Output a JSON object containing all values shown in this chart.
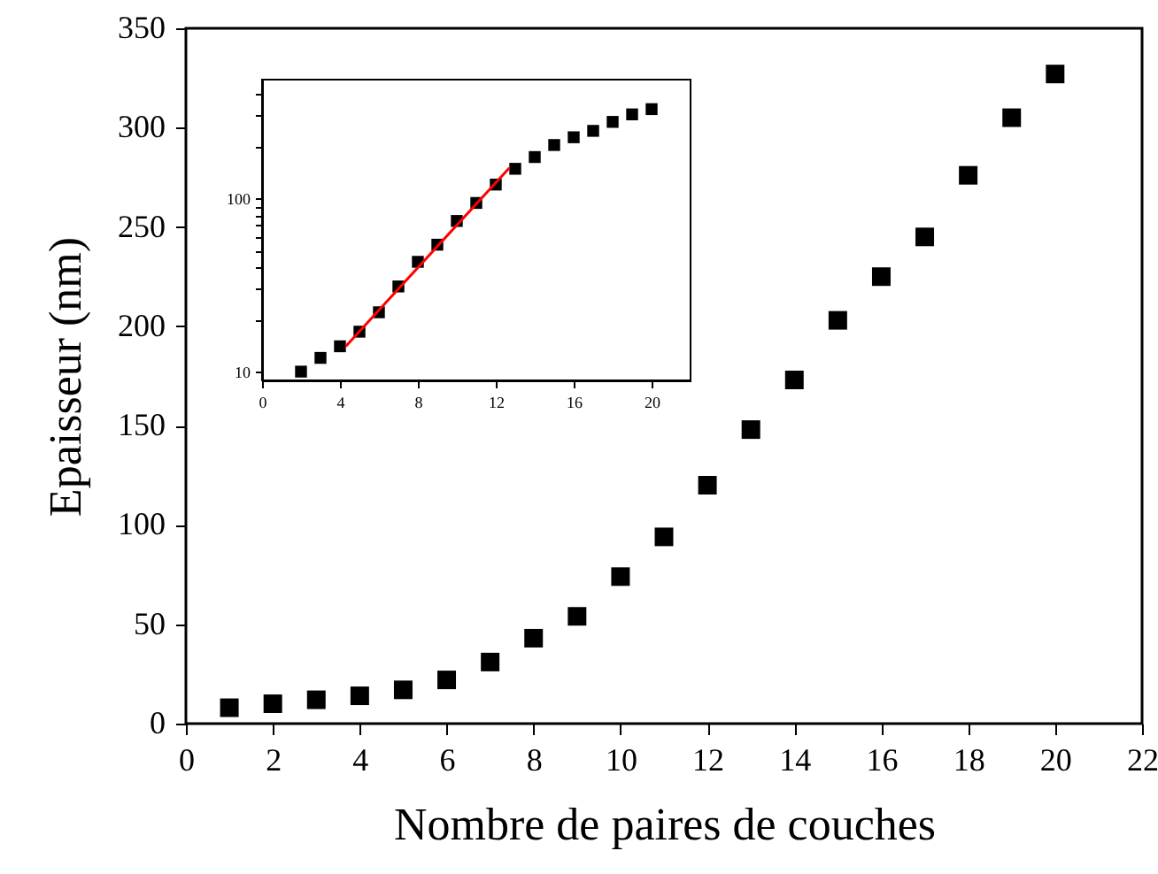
{
  "chart_data": [
    {
      "type": "scatter",
      "xlabel": "Nombre de paires de couches",
      "ylabel": "Epaisseur (nm)",
      "x": [
        1,
        2,
        3,
        4,
        5,
        6,
        7,
        8,
        9,
        10,
        11,
        12,
        13,
        14,
        15,
        16,
        17,
        18,
        19,
        20
      ],
      "series": [
        {
          "color": "#000000",
          "values": [
            8,
            10,
            12,
            14,
            17,
            22,
            31,
            43,
            54,
            74,
            94,
            120,
            148,
            173,
            203,
            225,
            245,
            276,
            305,
            327
          ]
        }
      ],
      "xlim": [
        0,
        22
      ],
      "ylim": [
        0,
        350
      ],
      "xticks": [
        0,
        2,
        4,
        6,
        8,
        10,
        12,
        14,
        16,
        18,
        20,
        22
      ],
      "yticks": [
        0,
        50,
        100,
        150,
        200,
        250,
        300,
        350
      ],
      "marker": "square",
      "grid": false
    },
    {
      "type": "scatter",
      "x": [
        2,
        3,
        4,
        5,
        6,
        7,
        8,
        9,
        10,
        11,
        12,
        13,
        14,
        15,
        16,
        17,
        18,
        19,
        20
      ],
      "series": [
        {
          "color": "#000000",
          "marker": "square",
          "values": [
            10,
            12,
            14,
            17,
            22,
            31,
            43,
            54,
            74,
            94,
            120,
            148,
            173,
            203,
            225,
            245,
            276,
            305,
            327
          ]
        },
        {
          "type": "line",
          "color": "#ff0000",
          "marker": "none",
          "line_style": "solid",
          "x": [
            4.3,
            12.7
          ],
          "values": [
            14,
            150
          ]
        }
      ],
      "log": "y",
      "xlim": [
        0,
        22
      ],
      "ylim": [
        8.9,
        484
      ],
      "xticks": [
        0,
        4,
        8,
        12,
        16,
        20
      ],
      "yticks": [
        10,
        {
          "value": 20,
          "label": null
        },
        {
          "value": 30,
          "label": null
        },
        {
          "value": 40,
          "label": null
        },
        {
          "value": 50,
          "label": null
        },
        {
          "value": 60,
          "label": null
        },
        {
          "value": 70,
          "label": null
        },
        {
          "value": 80,
          "label": null
        },
        {
          "value": 90,
          "label": null
        },
        100,
        {
          "value": 200,
          "label": null
        },
        {
          "value": 300,
          "label": null
        },
        {
          "value": 400,
          "label": null
        }
      ],
      "grid": false
    }
  ]
}
